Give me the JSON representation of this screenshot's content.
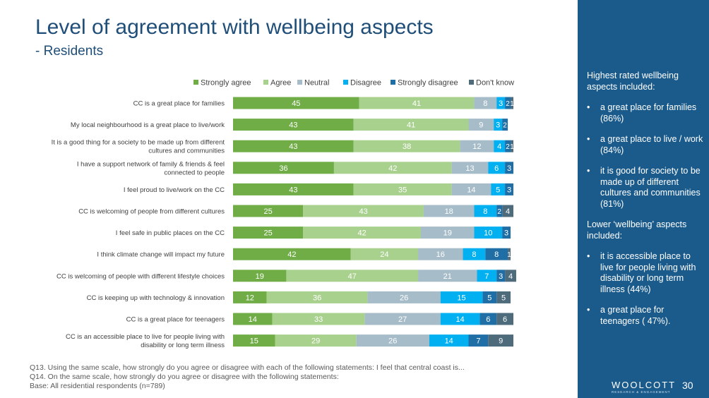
{
  "slide": {
    "title": "Level of agreement with wellbeing aspects",
    "subtitle": "- Residents",
    "footnotes": [
      "Q13. Using the same scale, how strongly do you agree or disagree with each of the following statements: I feel that central coast is...",
      "Q14. On the same scale, how strongly do you agree or disagree with the following statements:",
      "Base:  All residential respondents (n=789)"
    ],
    "page_number": "30",
    "brand": {
      "name": "WOOLCOTT",
      "tagline": "RESEARCH & ENGAGEMENT"
    }
  },
  "sidebar": {
    "heading_high": "Highest rated wellbeing aspects included:",
    "high_items": [
      "a great place for families (86%)",
      "a great place to live / work (84%)",
      "it is good for society to be made up of different cultures and communities (81%)"
    ],
    "heading_low": "Lower ‘wellbeing’ aspects included:",
    "low_items": [
      "it is accessible place to live for people living with disability or long term illness (44%)",
      "a great place for teenagers ( 47%)."
    ],
    "bullet": "•"
  },
  "chart_data": {
    "type": "bar",
    "orientation": "horizontal",
    "stacked": true,
    "xlim": [
      0,
      100
    ],
    "legend_position": "top",
    "colors": [
      "#70ad47",
      "#a9d18e",
      "#a6bcc9",
      "#00b0f0",
      "#1f6fa6",
      "#4d6b7b"
    ],
    "categories": [
      [
        "CC is a great place for families"
      ],
      [
        "My local neighbourhood is a great place to live/work"
      ],
      [
        "It is a good thing for a society to be made up from different",
        "cultures and communities"
      ],
      [
        "I have a support network of family & friends & feel",
        "connected to people"
      ],
      [
        "I feel proud to live/work on the CC"
      ],
      [
        "CC is welcoming of people from different cultures"
      ],
      [
        "I feel safe in public places on the CC"
      ],
      [
        "I think climate change will impact my future"
      ],
      [
        "CC is welcoming of people with different lifestyle choices"
      ],
      [
        "CC is keeping up with technology & innovation"
      ],
      [
        "CC is a great place for teenagers"
      ],
      [
        "CC is an accessible place to live for people living with",
        "disability or long term illness"
      ]
    ],
    "series": [
      {
        "name": "Strongly agree",
        "values": [
          45,
          43,
          43,
          36,
          43,
          25,
          25,
          42,
          19,
          12,
          14,
          15
        ]
      },
      {
        "name": "Agree",
        "values": [
          41,
          41,
          38,
          42,
          35,
          43,
          42,
          24,
          47,
          36,
          33,
          29
        ]
      },
      {
        "name": "Neutral",
        "values": [
          8,
          9,
          12,
          13,
          14,
          18,
          19,
          16,
          21,
          26,
          27,
          26
        ]
      },
      {
        "name": "Disagree",
        "values": [
          3,
          3,
          4,
          6,
          5,
          8,
          10,
          8,
          7,
          15,
          14,
          14
        ]
      },
      {
        "name": "Strongly disagree",
        "values": [
          2,
          2,
          2,
          3,
          3,
          2,
          3,
          8,
          3,
          5,
          6,
          7
        ]
      },
      {
        "name": "Don't know",
        "values": [
          1,
          0,
          1,
          0,
          0,
          4,
          0,
          1,
          4,
          5,
          6,
          9
        ]
      }
    ]
  }
}
